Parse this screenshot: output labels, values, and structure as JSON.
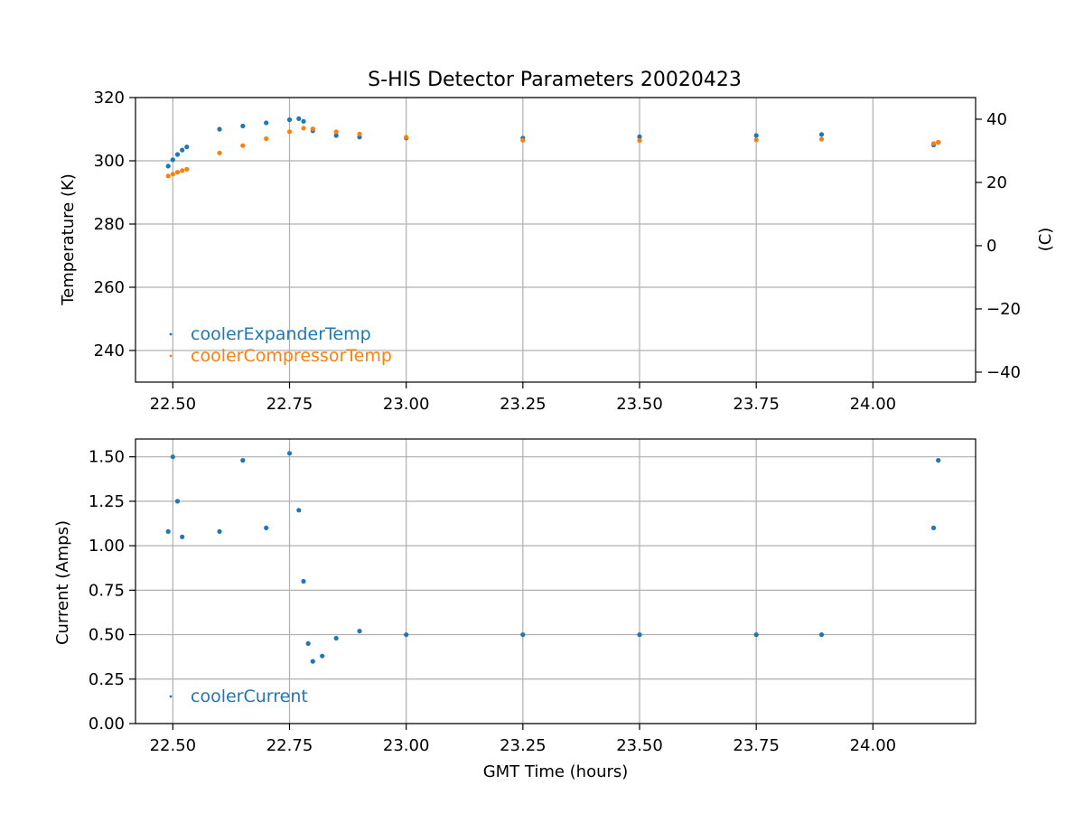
{
  "chart_data": [
    {
      "type": "scatter",
      "title": "S-HIS Detector Parameters 20020423",
      "xlabel": "",
      "ylabel": "Temperature (K)",
      "ylabel_right": "(C)",
      "xlim": [
        22.42,
        24.22
      ],
      "ylim": [
        230,
        320
      ],
      "ylim_right": [
        -43.15,
        46.85
      ],
      "x_ticks": [
        "22.50",
        "22.75",
        "23.00",
        "23.25",
        "23.50",
        "23.75",
        "24.00"
      ],
      "y_ticks": [
        "240",
        "260",
        "280",
        "300",
        "320"
      ],
      "y_ticks_right": [
        "−40",
        "−20",
        "0",
        "20",
        "40"
      ],
      "grid": true,
      "legend": "lower-left",
      "series": [
        {
          "name": "coolerExpanderTemp",
          "color": "#1f77b4",
          "points": [
            [
              22.49,
              298.3
            ],
            [
              22.5,
              300.3
            ],
            [
              22.51,
              302.0
            ],
            [
              22.52,
              303.4
            ],
            [
              22.53,
              304.4
            ],
            [
              22.6,
              310.0
            ],
            [
              22.65,
              311.0
            ],
            [
              22.7,
              312.0
            ],
            [
              22.75,
              313.0
            ],
            [
              22.77,
              313.3
            ],
            [
              22.78,
              312.5
            ],
            [
              22.8,
              309.5
            ],
            [
              22.85,
              308.0
            ],
            [
              22.9,
              307.5
            ],
            [
              23.0,
              307.2
            ],
            [
              23.25,
              307.2
            ],
            [
              23.5,
              307.6
            ],
            [
              23.75,
              308.0
            ],
            [
              23.89,
              308.3
            ],
            [
              24.13,
              305.0
            ],
            [
              24.14,
              305.8
            ]
          ]
        },
        {
          "name": "coolerCompressorTemp",
          "color": "#ff7f0e",
          "points": [
            [
              22.49,
              295.2
            ],
            [
              22.5,
              295.8
            ],
            [
              22.51,
              296.4
            ],
            [
              22.52,
              296.9
            ],
            [
              22.53,
              297.3
            ],
            [
              22.6,
              302.5
            ],
            [
              22.65,
              304.8
            ],
            [
              22.7,
              307.0
            ],
            [
              22.75,
              309.2
            ],
            [
              22.78,
              310.3
            ],
            [
              22.8,
              310.1
            ],
            [
              22.85,
              309.2
            ],
            [
              22.9,
              308.5
            ],
            [
              23.0,
              307.5
            ],
            [
              23.25,
              306.5
            ],
            [
              23.5,
              306.4
            ],
            [
              23.75,
              306.6
            ],
            [
              23.89,
              306.8
            ],
            [
              24.13,
              305.5
            ],
            [
              24.14,
              305.9
            ]
          ]
        }
      ]
    },
    {
      "type": "scatter",
      "title": "",
      "xlabel": "GMT Time (hours)",
      "ylabel": "Current (Amps)",
      "xlim": [
        22.42,
        24.22
      ],
      "ylim": [
        0,
        1.6
      ],
      "x_ticks": [
        "22.50",
        "22.75",
        "23.00",
        "23.25",
        "23.50",
        "23.75",
        "24.00"
      ],
      "y_ticks": [
        "0.00",
        "0.25",
        "0.50",
        "0.75",
        "1.00",
        "1.25",
        "1.50"
      ],
      "grid": true,
      "legend": "lower-left",
      "series": [
        {
          "name": "coolerCurrent",
          "color": "#1f77b4",
          "points": [
            [
              22.49,
              1.08
            ],
            [
              22.5,
              1.5
            ],
            [
              22.51,
              1.25
            ],
            [
              22.52,
              1.05
            ],
            [
              22.6,
              1.08
            ],
            [
              22.65,
              1.48
            ],
            [
              22.7,
              1.1
            ],
            [
              22.75,
              1.52
            ],
            [
              22.77,
              1.2
            ],
            [
              22.78,
              0.8
            ],
            [
              22.79,
              0.45
            ],
            [
              22.8,
              0.35
            ],
            [
              22.82,
              0.38
            ],
            [
              22.85,
              0.48
            ],
            [
              22.9,
              0.52
            ],
            [
              23.0,
              0.5
            ],
            [
              23.25,
              0.5
            ],
            [
              23.5,
              0.5
            ],
            [
              23.75,
              0.5
            ],
            [
              23.89,
              0.5
            ],
            [
              24.13,
              1.1
            ],
            [
              24.14,
              1.48
            ]
          ]
        }
      ]
    }
  ]
}
